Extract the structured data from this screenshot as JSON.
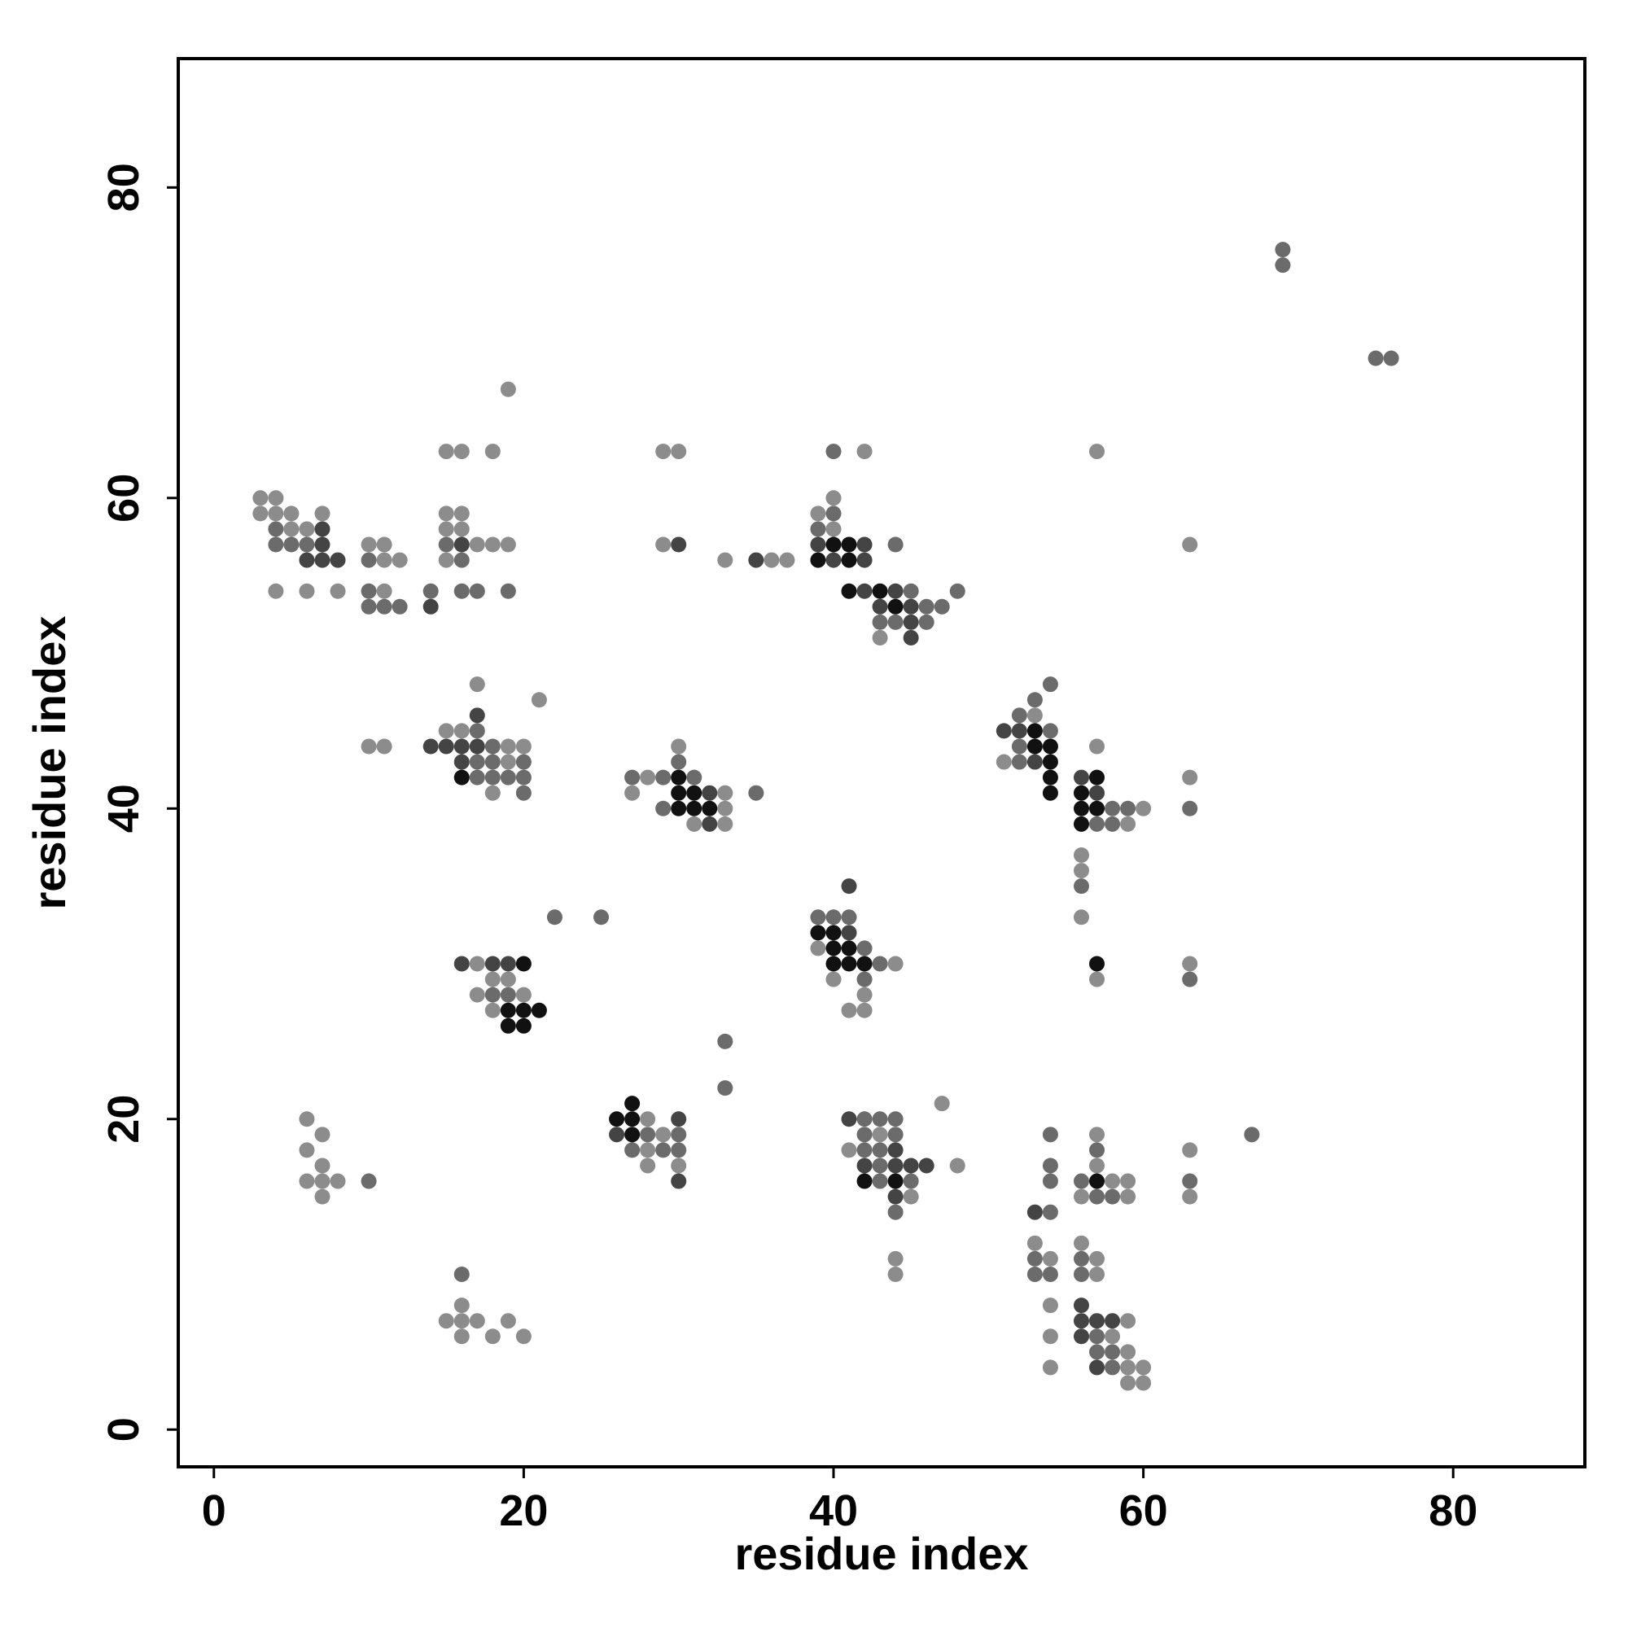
{
  "chart_data": {
    "type": "scatter",
    "xlabel": "residue index",
    "ylabel": "residue index",
    "xlim": [
      -2.3,
      88.5
    ],
    "ylim": [
      -2.4,
      88.3
    ],
    "xticks": [
      0,
      20,
      40,
      60,
      80
    ],
    "yticks": [
      0,
      20,
      40,
      60,
      80
    ],
    "series": [
      {
        "color": "#8c8c8c",
        "x": [
          3,
          4,
          3,
          4,
          5,
          7,
          5,
          6,
          4,
          6,
          8,
          10,
          11,
          11,
          12,
          11,
          15,
          16,
          18,
          15,
          16,
          15,
          16,
          17,
          18,
          19,
          15,
          19,
          29,
          30,
          29,
          33,
          36,
          37,
          42,
          40,
          39,
          40,
          43,
          63,
          57,
          10,
          11,
          15,
          16,
          17,
          21,
          19,
          20,
          19,
          18,
          28,
          30,
          27,
          33,
          33,
          31,
          33,
          53,
          51,
          60,
          59,
          57,
          63,
          56,
          56,
          56,
          57,
          63,
          17,
          17,
          18,
          19,
          20,
          18,
          39,
          44,
          40,
          42,
          41,
          42,
          6,
          7,
          6,
          7,
          6,
          7,
          8,
          7,
          28,
          29,
          28,
          28,
          30,
          43,
          41,
          45,
          48,
          47,
          44,
          44,
          57,
          57,
          58,
          59,
          56,
          59,
          63,
          63,
          53,
          56,
          54,
          57,
          57,
          54,
          59,
          54,
          58,
          59,
          54,
          59,
          60,
          59,
          60,
          16,
          15,
          16,
          17,
          19,
          16,
          18,
          20
        ],
        "values": [
          60,
          60,
          59,
          59,
          59,
          59,
          58,
          58,
          54,
          54,
          54,
          57,
          57,
          56,
          56,
          54,
          63,
          63,
          63,
          59,
          59,
          58,
          58,
          57,
          57,
          57,
          56,
          67,
          63,
          63,
          57,
          56,
          56,
          56,
          63,
          60,
          59,
          58,
          51,
          57,
          63,
          44,
          44,
          45,
          45,
          48,
          47,
          44,
          44,
          43,
          41,
          42,
          44,
          41,
          41,
          40,
          39,
          39,
          46,
          43,
          40,
          39,
          44,
          42,
          37,
          36,
          33,
          29,
          30,
          30,
          28,
          29,
          29,
          28,
          27,
          31,
          30,
          29,
          28,
          27,
          27,
          20,
          19,
          18,
          17,
          16,
          16,
          16,
          15,
          20,
          19,
          18,
          17,
          17,
          19,
          18,
          15,
          17,
          21,
          11,
          10,
          19,
          17,
          16,
          16,
          15,
          15,
          18,
          15,
          12,
          12,
          11,
          11,
          10,
          8,
          7,
          6,
          6,
          5,
          4,
          4,
          4,
          3,
          3,
          8,
          7,
          7,
          7,
          7,
          6,
          6,
          6
        ]
      },
      {
        "color": "#6b6b6b",
        "x": [
          4,
          4,
          5,
          6,
          10,
          10,
          10,
          11,
          12,
          14,
          15,
          16,
          16,
          17,
          19,
          40,
          40,
          39,
          44,
          45,
          48,
          46,
          47,
          43,
          44,
          46,
          69,
          69,
          75,
          76,
          18,
          17,
          18,
          20,
          17,
          18,
          19,
          20,
          20,
          17,
          27,
          29,
          31,
          30,
          35,
          29,
          54,
          52,
          53,
          54,
          52,
          52,
          58,
          59,
          57,
          58,
          63,
          56,
          63,
          22,
          25,
          18,
          19,
          39,
          40,
          41,
          42,
          43,
          42,
          33,
          33,
          10,
          28,
          30,
          27,
          29,
          30,
          42,
          43,
          44,
          42,
          44,
          42,
          43,
          43,
          43,
          45,
          44,
          54,
          57,
          54,
          54,
          56,
          57,
          58,
          54,
          63,
          67,
          53,
          56,
          53,
          54,
          56,
          57,
          57,
          58,
          58,
          16
        ],
        "values": [
          58,
          57,
          57,
          57,
          56,
          54,
          53,
          53,
          53,
          54,
          57,
          56,
          54,
          54,
          54,
          63,
          59,
          58,
          57,
          54,
          54,
          53,
          53,
          52,
          52,
          52,
          76,
          75,
          69,
          69,
          44,
          43,
          43,
          43,
          42,
          42,
          42,
          42,
          41,
          45,
          42,
          42,
          42,
          43,
          41,
          40,
          45,
          46,
          47,
          48,
          43,
          44,
          40,
          40,
          39,
          39,
          40,
          35,
          29,
          33,
          33,
          28,
          28,
          33,
          33,
          33,
          31,
          30,
          29,
          25,
          22,
          16,
          19,
          19,
          18,
          18,
          18,
          20,
          20,
          20,
          19,
          19,
          18,
          18,
          17,
          16,
          16,
          14,
          19,
          18,
          17,
          16,
          16,
          15,
          15,
          14,
          16,
          19,
          11,
          11,
          10,
          10,
          10,
          6,
          5,
          5,
          4,
          10
        ]
      },
      {
        "color": "#444444",
        "x": [
          7,
          7,
          6,
          7,
          8,
          14,
          16,
          30,
          35,
          39,
          42,
          40,
          42,
          42,
          44,
          43,
          45,
          45,
          45,
          14,
          15,
          17,
          16,
          17,
          16,
          32,
          32,
          51,
          52,
          53,
          56,
          57,
          16,
          18,
          19,
          41,
          41,
          30,
          26,
          30,
          41,
          44,
          42,
          44,
          45,
          46,
          44,
          53,
          56,
          56,
          57,
          58,
          56,
          57
        ],
        "values": [
          58,
          57,
          56,
          56,
          56,
          53,
          57,
          57,
          56,
          57,
          57,
          56,
          56,
          54,
          54,
          53,
          53,
          52,
          51,
          44,
          44,
          46,
          44,
          44,
          43,
          41,
          39,
          45,
          45,
          43,
          42,
          41,
          30,
          30,
          30,
          35,
          32,
          20,
          19,
          16,
          20,
          18,
          17,
          17,
          17,
          17,
          15,
          14,
          8,
          7,
          7,
          7,
          6,
          4
        ]
      },
      {
        "color": "#111111",
        "x": [
          40,
          41,
          39,
          41,
          41,
          43,
          44,
          16,
          30,
          30,
          31,
          30,
          31,
          32,
          53,
          53,
          54,
          54,
          54,
          54,
          57,
          56,
          56,
          57,
          56,
          57,
          20,
          19,
          20,
          21,
          19,
          20,
          39,
          40,
          40,
          41,
          40,
          41,
          42,
          27,
          26,
          27,
          27,
          42,
          44,
          57
        ],
        "values": [
          57,
          57,
          56,
          56,
          54,
          54,
          53,
          42,
          42,
          41,
          41,
          40,
          40,
          40,
          45,
          44,
          44,
          43,
          42,
          41,
          42,
          41,
          40,
          40,
          39,
          30,
          30,
          27,
          27,
          27,
          26,
          26,
          32,
          32,
          31,
          31,
          30,
          30,
          30,
          21,
          20,
          20,
          19,
          16,
          16,
          16
        ]
      }
    ]
  }
}
